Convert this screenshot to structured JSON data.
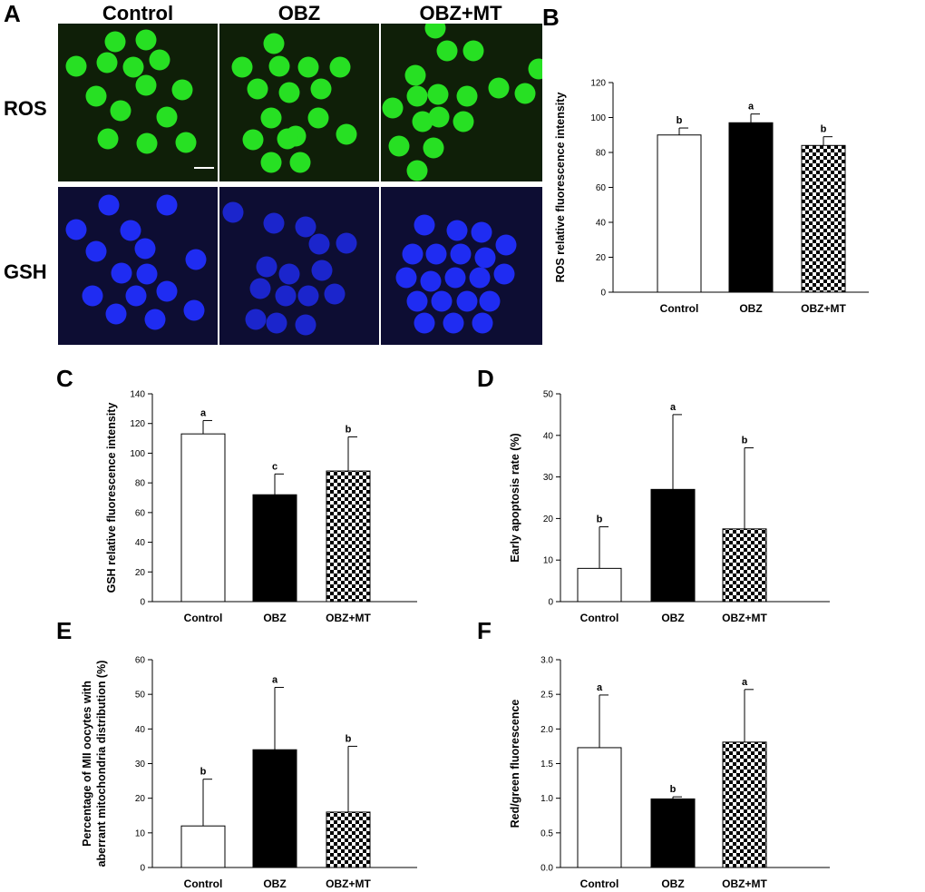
{
  "panels": {
    "a": "A",
    "b": "B",
    "c": "C",
    "d": "D",
    "e": "E",
    "f": "F"
  },
  "micrographs": {
    "columns": [
      "Control",
      "OBZ",
      "OBZ+MT"
    ],
    "rows": [
      "ROS",
      "GSH"
    ],
    "colors": {
      "ros_bg": "#0f1f08",
      "ros_cell": "#27e023",
      "gsh_bg": "#0d0d33",
      "gsh_cell": "#1f2cf2"
    }
  },
  "chart_data": [
    {
      "id": "B",
      "type": "bar",
      "categories": [
        "Control",
        "OBZ",
        "OBZ+MT"
      ],
      "values": [
        90,
        97,
        84
      ],
      "errors": [
        4,
        5,
        5
      ],
      "sig_letters": [
        "b",
        "a",
        "b"
      ],
      "ylabel": "ROS relative fluorescence intensity",
      "ylim": [
        0,
        120
      ],
      "ticks": [
        0,
        20,
        40,
        60,
        80,
        100,
        120
      ],
      "tick_labels": [
        "0",
        "20",
        "40",
        "60",
        "80",
        "100",
        "120"
      ],
      "fills": [
        "white",
        "black",
        "checker"
      ]
    },
    {
      "id": "C",
      "type": "bar",
      "categories": [
        "Control",
        "OBZ",
        "OBZ+MT"
      ],
      "values": [
        113,
        72,
        88
      ],
      "errors": [
        9,
        14,
        23
      ],
      "sig_letters": [
        "a",
        "c",
        "b"
      ],
      "ylabel": "GSH relative fluorescence intensity",
      "ylim": [
        0,
        140
      ],
      "ticks": [
        0,
        20,
        40,
        60,
        80,
        100,
        120,
        140
      ],
      "tick_labels": [
        "0",
        "20",
        "40",
        "60",
        "80",
        "100",
        "120",
        "140"
      ],
      "fills": [
        "white",
        "black",
        "checker"
      ]
    },
    {
      "id": "D",
      "type": "bar",
      "categories": [
        "Control",
        "OBZ",
        "OBZ+MT"
      ],
      "values": [
        8,
        27,
        17.5
      ],
      "errors": [
        10,
        18,
        19.5
      ],
      "sig_letters": [
        "b",
        "a",
        "b"
      ],
      "ylabel": "Early apoptosis rate (%)",
      "ylim": [
        0,
        50
      ],
      "ticks": [
        0,
        10,
        20,
        30,
        40,
        50
      ],
      "tick_labels": [
        "0",
        "10",
        "20",
        "30",
        "40",
        "50"
      ],
      "fills": [
        "white",
        "black",
        "checker"
      ]
    },
    {
      "id": "E",
      "type": "bar",
      "categories": [
        "Control",
        "OBZ",
        "OBZ+MT"
      ],
      "values": [
        12,
        34,
        16
      ],
      "errors": [
        13.5,
        18,
        19
      ],
      "sig_letters": [
        "b",
        "a",
        "b"
      ],
      "ylabel": "Percentage of MII oocytes with aberrant mitochondria distribution (%)",
      "ylabel_lines": [
        "Percentage of MII oocytes with",
        "aberrant mitochondria distribution (%)"
      ],
      "ylim": [
        0,
        60
      ],
      "ticks": [
        0,
        10,
        20,
        30,
        40,
        50,
        60
      ],
      "tick_labels": [
        "0",
        "10",
        "20",
        "30",
        "40",
        "50",
        "60"
      ],
      "fills": [
        "white",
        "black",
        "checker"
      ]
    },
    {
      "id": "F",
      "type": "bar",
      "categories": [
        "Control",
        "OBZ",
        "OBZ+MT"
      ],
      "values": [
        1.73,
        0.99,
        1.81
      ],
      "errors": [
        0.76,
        0.03,
        0.76
      ],
      "sig_letters": [
        "a",
        "b",
        "a"
      ],
      "ylabel": "Red/green fluorescence",
      "ylim": [
        0,
        3.0
      ],
      "ticks": [
        0,
        0.5,
        1.0,
        1.5,
        2.0,
        2.5,
        3.0
      ],
      "tick_labels": [
        "0.0",
        "0.5",
        "1.0",
        "1.5",
        "2.0",
        "2.5",
        "3.0"
      ],
      "fills": [
        "white",
        "black",
        "checker"
      ]
    }
  ]
}
